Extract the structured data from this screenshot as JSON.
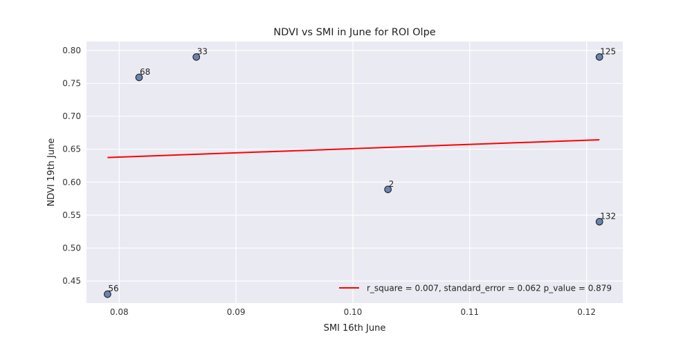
{
  "chart_data": {
    "type": "scatter",
    "title": "NDVI vs SMI in June for ROI Olpe",
    "xlabel": "SMI 16th June",
    "ylabel": "NDVI 19th June",
    "xlim": [
      0.0772,
      0.1231
    ],
    "ylim": [
      0.4165,
      0.8135
    ],
    "xticks": [
      0.08,
      0.09,
      0.1,
      0.11,
      0.12
    ],
    "xtick_labels": [
      "0.08",
      "0.09",
      "0.10",
      "0.11",
      "0.12"
    ],
    "yticks": [
      0.45,
      0.5,
      0.55,
      0.6,
      0.65,
      0.7,
      0.75,
      0.8
    ],
    "ytick_labels": [
      "0.45",
      "0.50",
      "0.55",
      "0.60",
      "0.65",
      "0.70",
      "0.75",
      "0.80"
    ],
    "grid": true,
    "legend_position": "lower-right",
    "points": [
      {
        "label": "56",
        "x": 0.079,
        "y": 0.43
      },
      {
        "label": "68",
        "x": 0.0817,
        "y": 0.759
      },
      {
        "label": "33",
        "x": 0.0866,
        "y": 0.79
      },
      {
        "label": "2",
        "x": 0.103,
        "y": 0.589
      },
      {
        "label": "125",
        "x": 0.1211,
        "y": 0.79
      },
      {
        "label": "132",
        "x": 0.1211,
        "y": 0.54
      }
    ],
    "fit_line": {
      "name": "r_square = 0.007, standard_error = 0.062 p_value = 0.879",
      "x": [
        0.079,
        0.1211
      ],
      "y": [
        0.6375,
        0.6644
      ],
      "color": "#ff0000"
    },
    "colors": {
      "plot_background": "#eaeaf2",
      "grid": "#ffffff",
      "point_fill": "#6a84b0",
      "point_edge": "#222222",
      "fit_line": "#ff0000"
    }
  }
}
